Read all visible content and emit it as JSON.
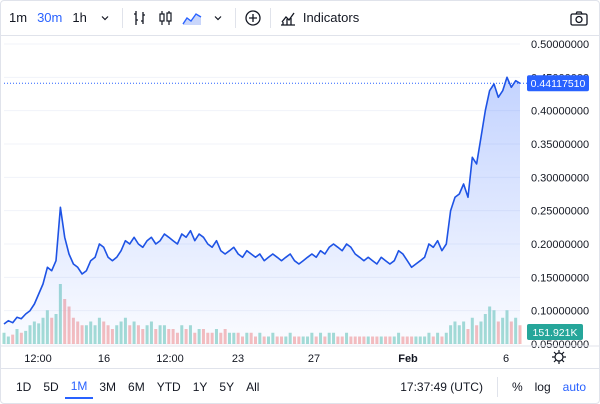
{
  "toolbar": {
    "intervals": [
      "1m",
      "30m",
      "1h"
    ],
    "active_interval": "30m",
    "indicators_label": "Indicators",
    "icons": [
      "chevron-down-icon",
      "bar-chart-style-icon",
      "candles-style-icon",
      "area-style-icon",
      "add-comparison-icon",
      "indicators-icon",
      "camera-icon"
    ]
  },
  "bottombar": {
    "ranges": [
      "1D",
      "5D",
      "1M",
      "3M",
      "6M",
      "YTD",
      "1Y",
      "5Y",
      "All"
    ],
    "active_range": "1M",
    "clock": "17:37:49 (UTC)",
    "percent_label": "%",
    "log_label": "log",
    "auto_label": "auto"
  },
  "colors": {
    "line": "#1e53e5",
    "area_top": "#c9d6fb",
    "volume_up": "#7fcfc3",
    "volume_down": "#f4a3a3",
    "price_label_bg": "#2962ff",
    "volume_label_bg": "#26a69a"
  },
  "chart_data": {
    "type": "area",
    "yaxis": {
      "ticks": [
        "0.50000000",
        "0.45000000",
        "0.40000000",
        "0.35000000",
        "0.30000000",
        "0.25000000",
        "0.20000000",
        "0.15000000",
        "0.10000000",
        "0.05000000"
      ],
      "range": [
        0.05,
        0.5
      ]
    },
    "xaxis": {
      "ticks": [
        "12:00",
        "16",
        "12:00",
        "23",
        "27",
        "Feb",
        "6"
      ]
    },
    "last_price": "0.44117510",
    "last_volume": "151.921K",
    "series": [
      {
        "values": [
          0.08,
          0.085,
          0.082,
          0.09,
          0.088,
          0.095,
          0.1,
          0.11,
          0.125,
          0.14,
          0.165,
          0.16,
          0.175,
          0.255,
          0.21,
          0.185,
          0.17,
          0.165,
          0.155,
          0.16,
          0.175,
          0.18,
          0.2,
          0.195,
          0.18,
          0.175,
          0.18,
          0.19,
          0.205,
          0.2,
          0.21,
          0.2,
          0.195,
          0.205,
          0.21,
          0.2,
          0.205,
          0.215,
          0.21,
          0.205,
          0.2,
          0.215,
          0.21,
          0.22,
          0.205,
          0.215,
          0.21,
          0.2,
          0.195,
          0.205,
          0.19,
          0.185,
          0.19,
          0.195,
          0.185,
          0.18,
          0.19,
          0.185,
          0.18,
          0.185,
          0.175,
          0.18,
          0.185,
          0.18,
          0.175,
          0.18,
          0.185,
          0.175,
          0.17,
          0.175,
          0.18,
          0.185,
          0.18,
          0.19,
          0.185,
          0.195,
          0.2,
          0.195,
          0.19,
          0.2,
          0.195,
          0.185,
          0.18,
          0.175,
          0.18,
          0.175,
          0.17,
          0.18,
          0.175,
          0.17,
          0.175,
          0.19,
          0.185,
          0.175,
          0.165,
          0.17,
          0.175,
          0.18,
          0.2,
          0.195,
          0.205,
          0.19,
          0.2,
          0.25,
          0.27,
          0.275,
          0.29,
          0.27,
          0.33,
          0.32,
          0.36,
          0.4,
          0.43,
          0.44,
          0.42,
          0.43,
          0.45,
          0.435,
          0.445,
          0.441
        ],
        "volumes": [
          0.3,
          0.2,
          0.25,
          0.4,
          0.3,
          0.35,
          0.5,
          0.6,
          0.55,
          0.7,
          0.9,
          0.7,
          0.8,
          1.6,
          1.2,
          1.0,
          0.7,
          0.6,
          0.5,
          0.5,
          0.6,
          0.5,
          0.7,
          0.6,
          0.5,
          0.4,
          0.5,
          0.6,
          0.7,
          0.5,
          0.6,
          0.5,
          0.4,
          0.5,
          0.6,
          0.4,
          0.5,
          0.5,
          0.4,
          0.4,
          0.3,
          0.5,
          0.4,
          0.5,
          0.3,
          0.4,
          0.4,
          0.3,
          0.3,
          0.4,
          0.3,
          0.4,
          0.3,
          0.3,
          0.3,
          0.2,
          0.3,
          0.3,
          0.2,
          0.3,
          0.2,
          0.2,
          0.3,
          0.2,
          0.2,
          0.2,
          0.3,
          0.2,
          0.2,
          0.2,
          0.2,
          0.3,
          0.2,
          0.3,
          0.2,
          0.3,
          0.3,
          0.2,
          0.2,
          0.3,
          0.2,
          0.2,
          0.2,
          0.2,
          0.2,
          0.2,
          0.2,
          0.2,
          0.2,
          0.2,
          0.2,
          0.3,
          0.2,
          0.2,
          0.2,
          0.2,
          0.2,
          0.2,
          0.3,
          0.2,
          0.3,
          0.2,
          0.3,
          0.5,
          0.6,
          0.5,
          0.6,
          0.4,
          0.7,
          0.5,
          0.6,
          0.8,
          1.0,
          0.9,
          0.6,
          0.7,
          0.9,
          0.6,
          0.7,
          0.5
        ]
      }
    ]
  }
}
